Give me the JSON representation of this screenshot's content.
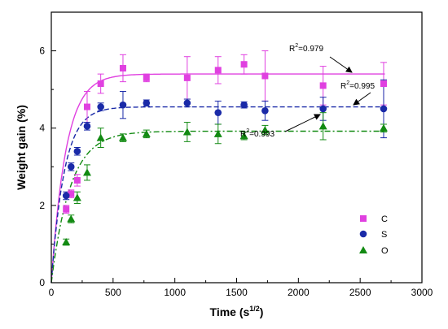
{
  "chart_data": {
    "type": "scatter",
    "xlabel": "Time (s",
    "xlabel_sup": "1/2",
    "xlabel_end": ")",
    "ylabel": "Weight gain (%)",
    "xlim": [
      0,
      3000
    ],
    "ylim": [
      0,
      7
    ],
    "x_ticks": [
      "0",
      "500",
      "1000",
      "1500",
      "2000",
      "2500",
      "3000"
    ],
    "y_ticks": [
      "0",
      "2",
      "4",
      "6"
    ],
    "grid": false,
    "legend_position": "bottom-right",
    "series": [
      {
        "name": "C",
        "marker": "square",
        "color": "#e040e0",
        "line_style": "solid",
        "points": [
          {
            "x": 120,
            "y": 1.9,
            "err": 0.1
          },
          {
            "x": 160,
            "y": 2.3,
            "err": 0.1
          },
          {
            "x": 210,
            "y": 2.65,
            "err": 0.15
          },
          {
            "x": 290,
            "y": 4.55,
            "err": 0.4
          },
          {
            "x": 400,
            "y": 5.15,
            "err": 0.25
          },
          {
            "x": 580,
            "y": 5.55,
            "err": 0.35
          },
          {
            "x": 770,
            "y": 5.3,
            "err": 0.1
          },
          {
            "x": 1100,
            "y": 5.3,
            "err": 0.55
          },
          {
            "x": 1350,
            "y": 5.5,
            "err": 0.35
          },
          {
            "x": 1560,
            "y": 5.65,
            "err": 0.25
          },
          {
            "x": 1730,
            "y": 5.35,
            "err": 0.65
          },
          {
            "x": 2200,
            "y": 5.1,
            "err": 0.5
          },
          {
            "x": 2690,
            "y": 5.15,
            "err": 0.55
          }
        ],
        "fit_plateau": 5.4,
        "fit_rate": 0.0085,
        "r_squared": "=0.979"
      },
      {
        "name": "S",
        "marker": "circle",
        "color": "#1a2aa8",
        "line_style": "dashed",
        "points": [
          {
            "x": 120,
            "y": 2.25,
            "err": 0.1
          },
          {
            "x": 160,
            "y": 3.0,
            "err": 0.1
          },
          {
            "x": 210,
            "y": 3.4,
            "err": 0.1
          },
          {
            "x": 290,
            "y": 4.05,
            "err": 0.1
          },
          {
            "x": 400,
            "y": 4.55,
            "err": 0.1
          },
          {
            "x": 580,
            "y": 4.6,
            "err": 0.35
          },
          {
            "x": 770,
            "y": 4.65,
            "err": 0.08
          },
          {
            "x": 1100,
            "y": 4.65,
            "err": 0.1
          },
          {
            "x": 1350,
            "y": 4.4,
            "err": 0.3
          },
          {
            "x": 1560,
            "y": 4.6,
            "err": 0.08
          },
          {
            "x": 1730,
            "y": 4.45,
            "err": 0.25
          },
          {
            "x": 2200,
            "y": 4.5,
            "err": 0.3
          },
          {
            "x": 2690,
            "y": 4.5,
            "err": 0.75
          }
        ],
        "fit_plateau": 4.55,
        "fit_rate": 0.0095,
        "r_squared": "=0.995"
      },
      {
        "name": "O",
        "marker": "triangle",
        "color": "#128a12",
        "line_style": "dashdot",
        "points": [
          {
            "x": 120,
            "y": 1.05,
            "err": 0.08
          },
          {
            "x": 160,
            "y": 1.65,
            "err": 0.1
          },
          {
            "x": 210,
            "y": 2.2,
            "err": 0.15
          },
          {
            "x": 290,
            "y": 2.85,
            "err": 0.2
          },
          {
            "x": 400,
            "y": 3.75,
            "err": 0.25
          },
          {
            "x": 580,
            "y": 3.75,
            "err": 0.1
          },
          {
            "x": 770,
            "y": 3.85,
            "err": 0.1
          },
          {
            "x": 1100,
            "y": 3.9,
            "err": 0.25
          },
          {
            "x": 1350,
            "y": 3.85,
            "err": 0.25
          },
          {
            "x": 1560,
            "y": 3.8,
            "err": 0.1
          },
          {
            "x": 1730,
            "y": 3.95,
            "err": 0.12
          },
          {
            "x": 2200,
            "y": 4.05,
            "err": 0.35
          },
          {
            "x": 2690,
            "y": 4.0,
            "err": 0.1
          }
        ],
        "fit_plateau": 3.92,
        "fit_rate": 0.0065,
        "r_squared": "=0.993"
      }
    ]
  }
}
